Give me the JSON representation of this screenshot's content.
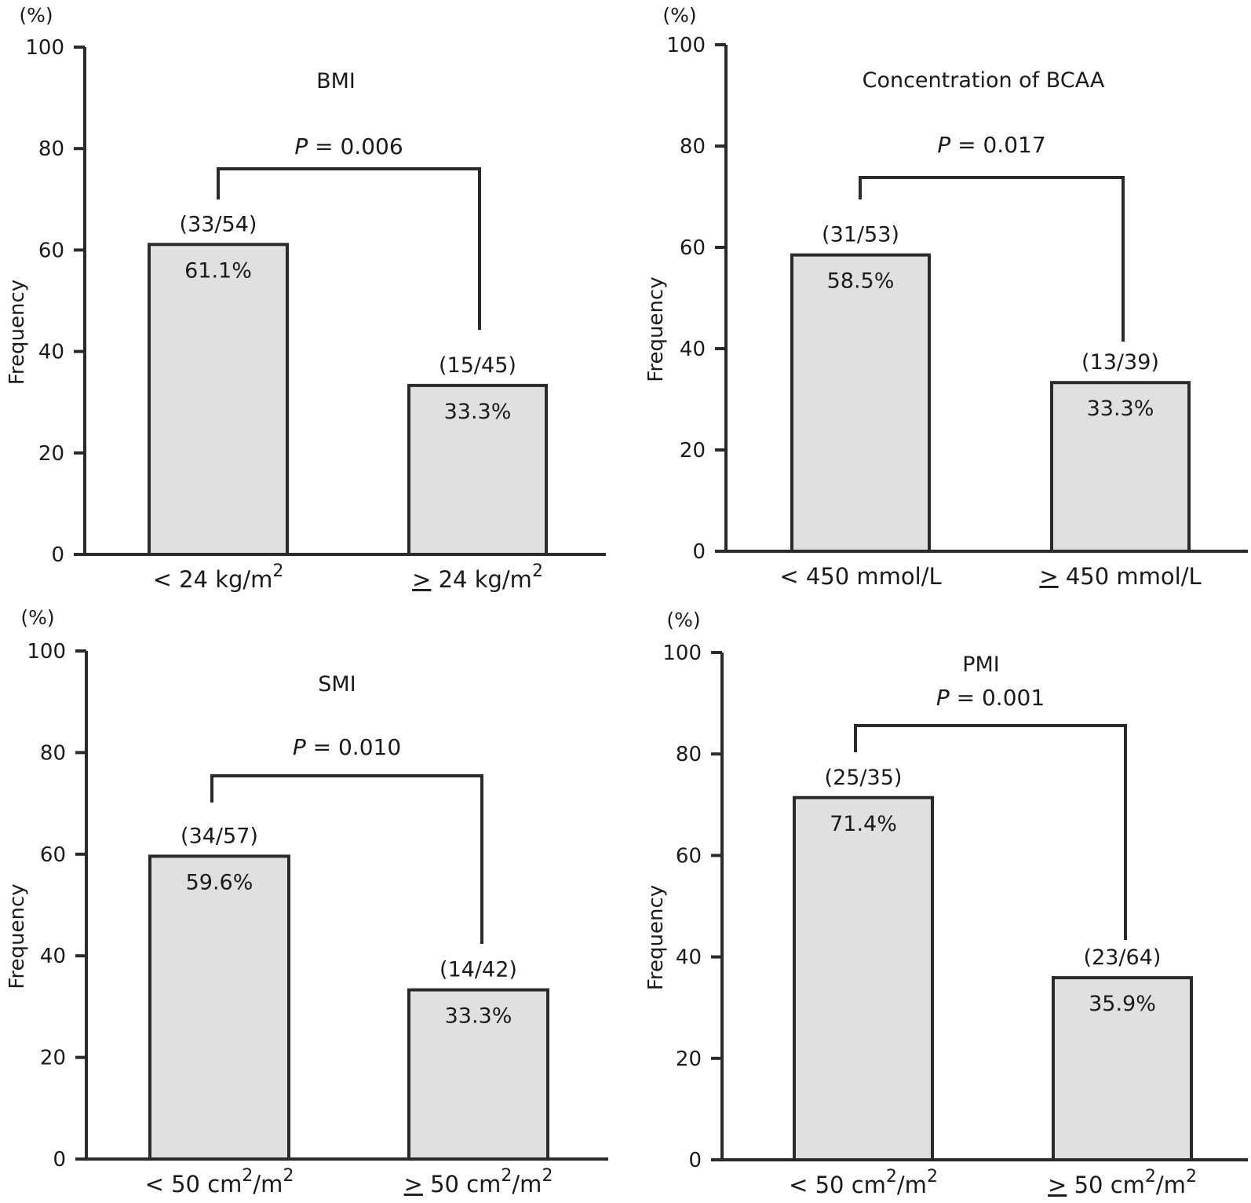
{
  "chart_data": [
    {
      "type": "bar",
      "title": "BMI",
      "ylabel": "Frequency",
      "yunit": "(%)",
      "ylim": [
        0,
        100
      ],
      "yticks": [
        0,
        20,
        40,
        60,
        80,
        100
      ],
      "categories": [
        {
          "main": "< 24 kg/m",
          "sup": "2",
          "tail": "",
          "geq": false
        },
        {
          "main": " 24 kg/m",
          "sup": "2",
          "tail": "",
          "geq": true
        }
      ],
      "values": [
        61.1,
        33.3
      ],
      "value_labels": [
        "61.1%",
        "33.3%"
      ],
      "counts": [
        "(33/54)",
        "(15/45)"
      ],
      "p_label": "P",
      "p_value": " = 0.006"
    },
    {
      "type": "bar",
      "title": "Concentration of BCAA",
      "ylabel": "Frequency",
      "yunit": "(%)",
      "ylim": [
        0,
        100
      ],
      "yticks": [
        0,
        20,
        40,
        60,
        80,
        100
      ],
      "categories": [
        {
          "main": "< 450 mmol/L",
          "sup": "",
          "tail": "",
          "geq": false
        },
        {
          "main": " 450 mmol/L",
          "sup": "",
          "tail": "",
          "geq": true
        }
      ],
      "values": [
        58.5,
        33.3
      ],
      "value_labels": [
        "58.5%",
        "33.3%"
      ],
      "counts": [
        "(31/53)",
        "(13/39)"
      ],
      "p_label": "P",
      "p_value": " = 0.017"
    },
    {
      "type": "bar",
      "title": "SMI",
      "ylabel": "Frequency",
      "yunit": "(%)",
      "ylim": [
        0,
        100
      ],
      "yticks": [
        0,
        20,
        40,
        60,
        80,
        100
      ],
      "categories": [
        {
          "main": "< 50 cm",
          "sup": "2",
          "tail": "/m",
          "sup2": "2",
          "geq": false
        },
        {
          "main": " 50 cm",
          "sup": "2",
          "tail": "/m",
          "sup2": "2",
          "geq": true
        }
      ],
      "values": [
        59.6,
        33.3
      ],
      "value_labels": [
        "59.6%",
        "33.3%"
      ],
      "counts": [
        "(34/57)",
        "(14/42)"
      ],
      "p_label": "P",
      "p_value": " = 0.010"
    },
    {
      "type": "bar",
      "title": "PMI",
      "ylabel": "Frequency",
      "yunit": "(%)",
      "ylim": [
        0,
        100
      ],
      "yticks": [
        0,
        20,
        40,
        60,
        80,
        100
      ],
      "categories": [
        {
          "main": "< 50 cm",
          "sup": "2",
          "tail": "/m",
          "sup2": "2",
          "geq": false
        },
        {
          "main": " 50 cm",
          "sup": "2",
          "tail": "/m",
          "sup2": "2",
          "geq": true
        }
      ],
      "values": [
        71.4,
        35.9
      ],
      "value_labels": [
        "71.4%",
        "35.9%"
      ],
      "counts": [
        "(25/35)",
        "(23/64)"
      ],
      "p_label": "P",
      "p_value": " = 0.001"
    }
  ]
}
